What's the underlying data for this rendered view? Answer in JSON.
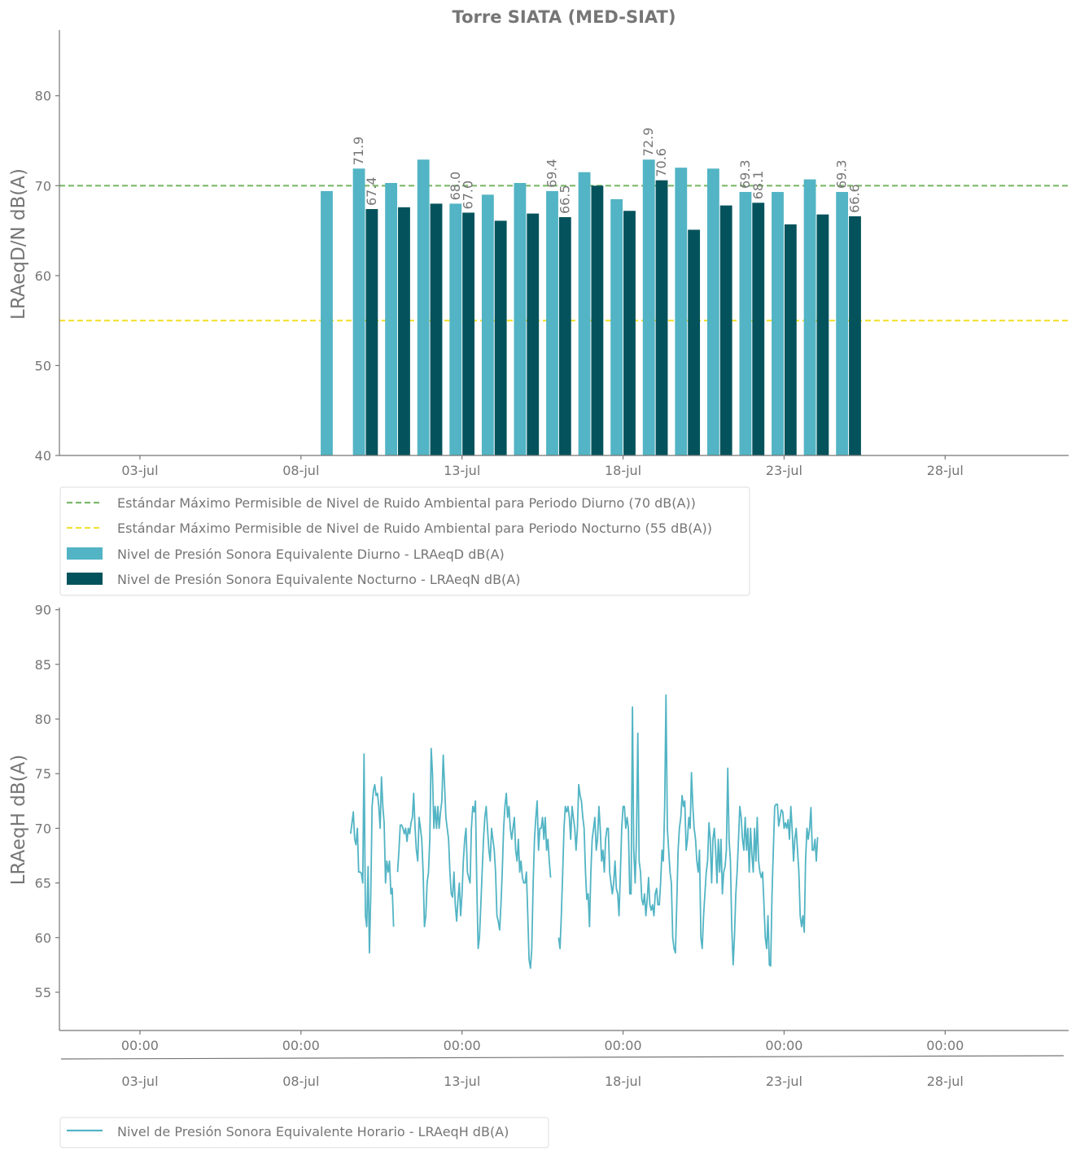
{
  "colors": {
    "text": "#767676",
    "axis": "#767676",
    "day_bar": "#52b4c4",
    "night_bar": "#04535c",
    "day_limit": "#7cb96a",
    "night_limit": "#f3e23b",
    "hourly_line": "#52b4c4"
  },
  "chart_data": [
    {
      "type": "bar",
      "title": "Torre SIATA (MED-SIAT)",
      "ylabel": "LRAeqD/N dB(A)",
      "xlabel": "",
      "ylim": [
        40,
        87.3
      ],
      "xlim": [
        "2023-06-30T12:00",
        "2023-07-31T20:00"
      ],
      "yticks": [
        40,
        50,
        60,
        70,
        80
      ],
      "xticks": [
        {
          "date": "2023-07-03",
          "label": "03-jul"
        },
        {
          "date": "2023-07-08",
          "label": "08-jul"
        },
        {
          "date": "2023-07-13",
          "label": "13-jul"
        },
        {
          "date": "2023-07-18",
          "label": "18-jul"
        },
        {
          "date": "2023-07-23",
          "label": "23-jul"
        },
        {
          "date": "2023-07-28",
          "label": "28-jul"
        }
      ],
      "dates": [
        "2023-07-09",
        "2023-07-10",
        "2023-07-11",
        "2023-07-12",
        "2023-07-13",
        "2023-07-14",
        "2023-07-15",
        "2023-07-16",
        "2023-07-17",
        "2023-07-18",
        "2023-07-19",
        "2023-07-20",
        "2023-07-21",
        "2023-07-22",
        "2023-07-23",
        "2023-07-24",
        "2023-07-25"
      ],
      "series": [
        {
          "name": "Nivel de Presión Sonora Equivalente Diurno - LRAeqD dB(A)",
          "values": [
            69.4,
            71.9,
            70.3,
            72.9,
            68.0,
            69.0,
            70.3,
            69.4,
            71.5,
            68.5,
            72.9,
            72.0,
            71.9,
            69.3,
            69.3,
            70.7,
            69.3
          ]
        },
        {
          "name": "Nivel de Presión Sonora Equivalente Nocturno - LRAeqN dB(A)",
          "values": [
            null,
            67.4,
            67.6,
            68.0,
            67.0,
            66.1,
            66.9,
            66.5,
            70.0,
            67.2,
            70.6,
            65.1,
            67.8,
            68.1,
            65.7,
            66.8,
            66.6
          ]
        }
      ],
      "data_labels": [
        {
          "series": 0,
          "index": 1,
          "text": "71.9"
        },
        {
          "series": 1,
          "index": 1,
          "text": "67.4"
        },
        {
          "series": 0,
          "index": 4,
          "text": "68.0"
        },
        {
          "series": 1,
          "index": 4,
          "text": "67.0"
        },
        {
          "series": 0,
          "index": 7,
          "text": "69.4"
        },
        {
          "series": 1,
          "index": 7,
          "text": "66.5"
        },
        {
          "series": 0,
          "index": 10,
          "text": "72.9"
        },
        {
          "series": 1,
          "index": 10,
          "text": "70.6"
        },
        {
          "series": 0,
          "index": 13,
          "text": "69.3"
        },
        {
          "series": 1,
          "index": 13,
          "text": "68.1"
        },
        {
          "series": 0,
          "index": 16,
          "text": "69.3"
        },
        {
          "series": 1,
          "index": 16,
          "text": "66.6"
        }
      ],
      "reference_lines": [
        {
          "name": "Estándar Máximo Permisible de Nivel de Ruido Ambiental para Periodo Diurno (70 dB(A))",
          "value": 70
        },
        {
          "name": "Estándar Máximo Permisible de Nivel de Ruido Ambiental para Periodo Nocturno (55 dB(A))",
          "value": 55
        }
      ],
      "legend": "bottom-left, below plot",
      "grid": false
    },
    {
      "type": "line",
      "title": "",
      "ylabel": "LRAeqH dB(A)",
      "xlabel": "",
      "ylim": [
        51.5,
        90.2
      ],
      "xlim": [
        "2023-06-30T12:00",
        "2023-07-31T20:00"
      ],
      "yticks": [
        55,
        60,
        65,
        70,
        75,
        80,
        85,
        90
      ],
      "xticks": [
        {
          "date": "2023-07-03",
          "label": "00:00",
          "sublabel": "03-jul"
        },
        {
          "date": "2023-07-08",
          "label": "00:00",
          "sublabel": "08-jul"
        },
        {
          "date": "2023-07-13",
          "label": "00:00",
          "sublabel": "13-jul"
        },
        {
          "date": "2023-07-18",
          "label": "00:00",
          "sublabel": "18-jul"
        },
        {
          "date": "2023-07-23",
          "label": "00:00",
          "sublabel": "23-jul"
        },
        {
          "date": "2023-07-28",
          "label": "00:00",
          "sublabel": "28-jul"
        }
      ],
      "start": "2023-07-09T13:00",
      "interval_hours": 1,
      "series": [
        {
          "name": "Nivel de Presión Sonora Equivalente Horario - LRAeqH dB(A)",
          "values": [
            69.5,
            70.5,
            71.5,
            69.0,
            68.5,
            70.0,
            66.0,
            66.0,
            65.9,
            65.0,
            76.8,
            62.0,
            61.0,
            66.5,
            58.6,
            64.0,
            72.0,
            73.5,
            74.0,
            73.0,
            73.2,
            72.0,
            70.0,
            74.7,
            72.0,
            70.5,
            65.0,
            67.0,
            66.0,
            67.0,
            64.0,
            64.5,
            61.0,
            null,
            null,
            66.0,
            68.0,
            70.3,
            70.3,
            70.0,
            69.5,
            70.0,
            68.8,
            70.0,
            69.5,
            70.5,
            71.0,
            73.2,
            70.0,
            68.0,
            67.0,
            71.0,
            70.0,
            69.0,
            66.0,
            61.0,
            62.0,
            65.0,
            66.0,
            69.0,
            77.3,
            75.0,
            70.0,
            72.0,
            70.0,
            72.0,
            70.0,
            71.5,
            72.5,
            76.7,
            74.0,
            71.0,
            70.0,
            69.0,
            66.0,
            64.0,
            63.7,
            66.0,
            63.0,
            61.5,
            63.5,
            65.0,
            62.0,
            64.0,
            67.0,
            69.0,
            70.0,
            66.0,
            65.5,
            65.0,
            70.0,
            72.0,
            71.5,
            72.5,
            65.0,
            59.0,
            60.0,
            63.0,
            66.0,
            69.0,
            71.0,
            72.0,
            70.0,
            68.0,
            67.0,
            70.0,
            69.0,
            68.0,
            66.0,
            62.0,
            61.5,
            60.7,
            63.0,
            66.0,
            70.0,
            72.0,
            73.2,
            71.0,
            72.0,
            70.0,
            69.0,
            70.0,
            71.0,
            68.0,
            67.0,
            69.0,
            66.0,
            67.0,
            65.5,
            65.0,
            65.0,
            66.0,
            62.0,
            58.0,
            57.2,
            59.0,
            65.0,
            69.0,
            71.0,
            72.5,
            68.0,
            70.0,
            70.0,
            71.0,
            69.0,
            71.0,
            68.0,
            69.0,
            67.0,
            65.5,
            null,
            null,
            null,
            null,
            null,
            60.0,
            59.0,
            62.0,
            66.0,
            70.0,
            72.0,
            71.5,
            72.0,
            71.0,
            69.0,
            72.0,
            71.0,
            70.0,
            68.0,
            70.0,
            74.0,
            73.0,
            72.5,
            71.0,
            70.0,
            66.0,
            63.5,
            64.0,
            61.0,
            66.0,
            69.0,
            70.0,
            71.0,
            68.0,
            69.0,
            72.0,
            70.0,
            67.0,
            68.0,
            66.0,
            69.0,
            70.0,
            70.0,
            66.0,
            65.0,
            64.0,
            65.0,
            67.0,
            64.5,
            64.0,
            62.0,
            66.0,
            70.0,
            72.0,
            72.0,
            70.0,
            71.0,
            70.0,
            64.0,
            64.0,
            81.1,
            68.0,
            65.0,
            69.0,
            78.7,
            67.0,
            66.0,
            63.5,
            63.0,
            64.0,
            62.0,
            63.5,
            65.5,
            63.0,
            62.5,
            63.0,
            62.0,
            64.0,
            64.5,
            63.0,
            63.0,
            65.0,
            68.0,
            67.0,
            72.0,
            82.2,
            70.0,
            68.0,
            66.0,
            65.0,
            60.0,
            59.0,
            58.6,
            63.0,
            68.0,
            70.0,
            71.0,
            73.0,
            72.0,
            72.5,
            68.0,
            69.0,
            71.0,
            70.0,
            75.1,
            72.0,
            70.0,
            69.0,
            67.0,
            66.0,
            68.0,
            60.0,
            59.0,
            62.0,
            64.0,
            66.0,
            67.0,
            70.5,
            69.0,
            65.0,
            69.0,
            70.0,
            68.0,
            65.0,
            69.0,
            66.0,
            69.0,
            64.0,
            66.0,
            66.5,
            68.0,
            75.5,
            69.0,
            67.0,
            61.0,
            57.5,
            60.0,
            64.0,
            66.0,
            69.0,
            72.0,
            71.0,
            69.0,
            68.0,
            71.0,
            68.0,
            70.0,
            66.0,
            70.0,
            67.5,
            66.0,
            70.0,
            67.0,
            71.0,
            67.0,
            66.0,
            65.5,
            66.0,
            63.0,
            60.0,
            59.0,
            62.0,
            57.5,
            57.4,
            64.0,
            68.0,
            72.0,
            72.2,
            72.2,
            70.2,
            71.0,
            71.7,
            71.5,
            70.0,
            70.5,
            70.0,
            70.8,
            69.0,
            72.0,
            70.0,
            67.0,
            69.0,
            70.0,
            68.0,
            66.0,
            62.0,
            61.0,
            62.0,
            60.5,
            67.0,
            70.0,
            69.0,
            70.0,
            71.9,
            68.0,
            68.0,
            69.0,
            67.0,
            69.2
          ]
        }
      ],
      "legend": "bottom-left, below plot",
      "grid": false
    }
  ]
}
